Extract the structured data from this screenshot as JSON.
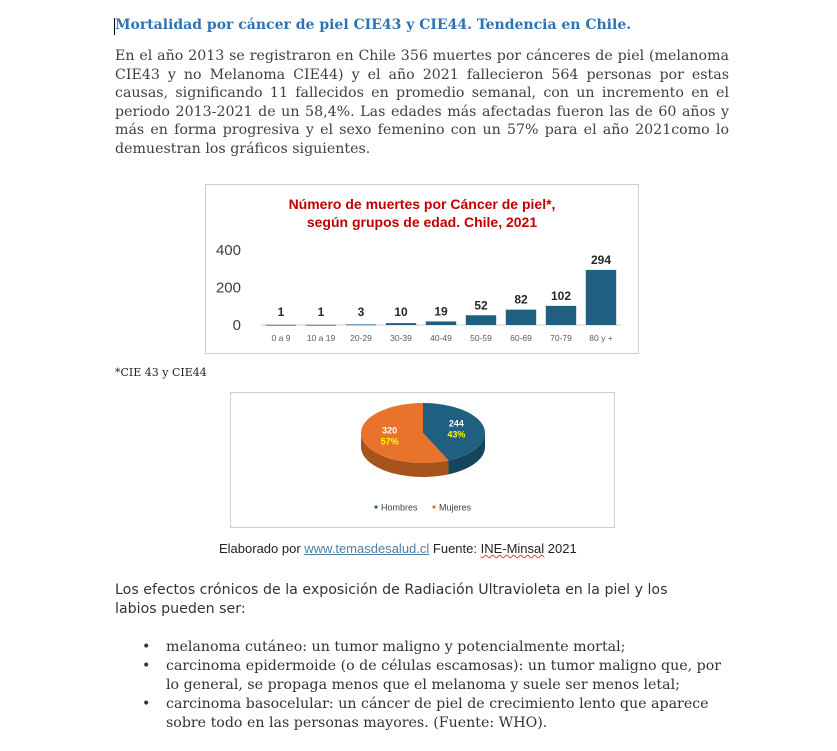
{
  "title": "Mortalidad por cáncer de piel CIE43 y CIE44. Tendencia en Chile.",
  "intro_paragraph": "En el año 2013 se registraron en Chile 356 muertes por cánceres de piel (melanoma CIE43 y no Melanoma CIE44) y el año 2021 fallecieron 564 personas por estas causas, significando 11 fallecidos en promedio semanal, con un incremento en el periodo 2013-2021 de un 58,4%. Las edades más afectadas fueron las de 60 años y más en forma progresiva y el sexo femenino con un 57% para el año 2021como lo demuestran los gráficos siguientes.",
  "chart_data": [
    {
      "type": "bar",
      "title": "Número de muertes por Cáncer de piel*, según grupos de edad. Chile, 2021",
      "title_lines": [
        "Número de muertes por Cáncer de piel*,",
        "según grupos de edad. Chile, 2021"
      ],
      "categories": [
        "0 a 9",
        "10 a 19",
        "20-29",
        "30-39",
        "40-49",
        "50-59",
        "60-69",
        "70-79",
        "80 y +"
      ],
      "values": [
        1,
        1,
        3,
        10,
        19,
        52,
        82,
        102,
        294
      ],
      "ylim": [
        0,
        400
      ],
      "yticks": [
        0,
        200,
        400
      ],
      "bar_color": "#1f5f80",
      "title_color": "#c00000",
      "grid": false
    },
    {
      "type": "pie",
      "labels": [
        "Hombres",
        "Mujeres"
      ],
      "values": [
        244,
        320
      ],
      "percent_labels": [
        "43%",
        "57%"
      ],
      "colors": [
        "#1f5f80",
        "#e8732a"
      ],
      "percent_color": "#ffff00",
      "legend": "bottom",
      "style": "3d"
    }
  ],
  "footnote": "*CIE 43 y CIE44",
  "source": {
    "prefix": "Elaborado por ",
    "link": "www.temasdesalud.cl",
    "middle": " Fuente: ",
    "agency": "INE-Minsal",
    "year": " 2021"
  },
  "effects_intro": "Los efectos crónicos de la exposición de Radiación Ultravioleta en la piel y los labios pueden ser:",
  "bullet_symbol": "•",
  "bullets": [
    "melanoma cutáneo: un tumor maligno y potencialmente mortal;",
    "carcinoma epidermoide (o de células escamosas): un tumor maligno que, por lo general, se propaga menos que el melanoma y suele ser menos letal;",
    "carcinoma basocelular: un cáncer de piel de crecimiento lento que aparece sobre todo en las personas mayores. (Fuente: WHO)."
  ]
}
